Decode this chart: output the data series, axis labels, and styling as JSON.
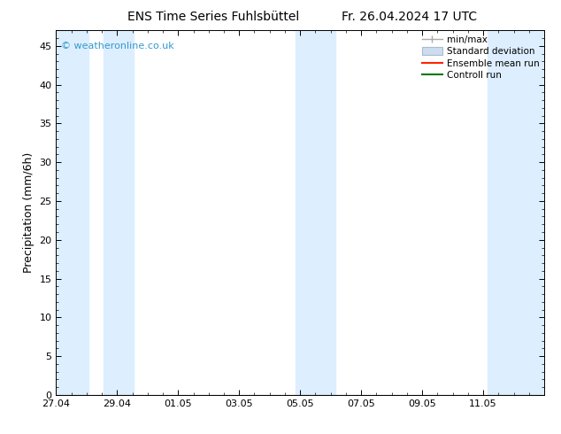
{
  "title_left": "ENS Time Series Fuhlsbüttel",
  "title_right": "Fr. 26.04.2024 17 UTC",
  "ylabel": "Precipitation (mm/6h)",
  "ylim": [
    0,
    47
  ],
  "xlim": [
    0,
    16
  ],
  "xtick_positions": [
    0,
    2,
    4,
    6,
    8,
    10,
    12,
    14
  ],
  "xtick_labels": [
    "27.04",
    "29.04",
    "01.05",
    "03.05",
    "05.05",
    "07.05",
    "09.05",
    "11.05"
  ],
  "ytick_positions": [
    0,
    5,
    10,
    15,
    20,
    25,
    30,
    35,
    40,
    45
  ],
  "watermark": "© weatheronline.co.uk",
  "watermark_color": "#3399cc",
  "background_color": "#ffffff",
  "shaded_bands": [
    {
      "xmin": 0.0,
      "xmax": 1.05
    },
    {
      "xmin": 1.55,
      "xmax": 2.55
    },
    {
      "xmin": 7.85,
      "xmax": 9.15
    },
    {
      "xmin": 14.15,
      "xmax": 16.0
    }
  ],
  "band_color": "#ddeeff",
  "minmax_color": "#aaaaaa",
  "stddev_face": "#ccddef",
  "stddev_edge": "#aabbcc",
  "ensemble_color": "#ff2200",
  "control_color": "#007700",
  "title_fontsize": 10,
  "axis_label_fontsize": 9,
  "tick_fontsize": 8,
  "legend_fontsize": 7.5,
  "watermark_fontsize": 8
}
